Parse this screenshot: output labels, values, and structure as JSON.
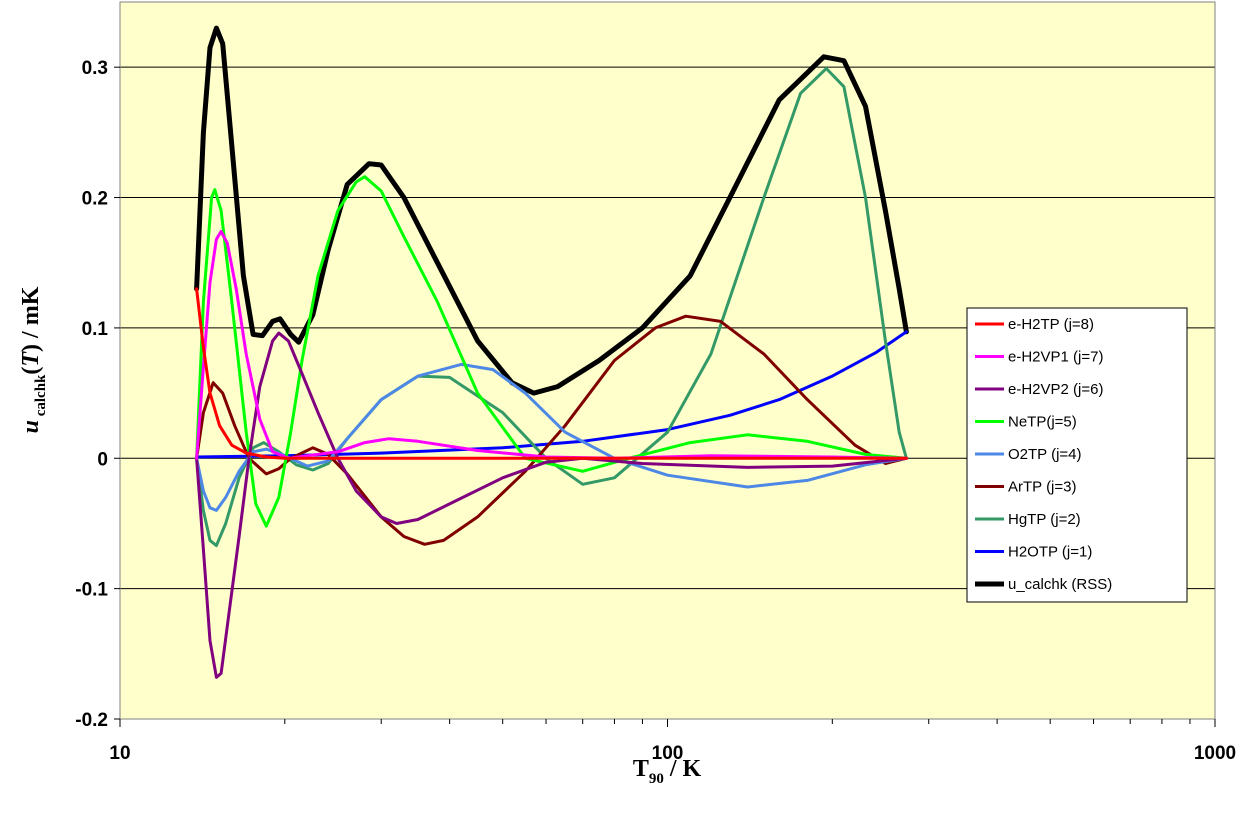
{
  "chart_data": {
    "type": "line",
    "title": "",
    "xlabel": {
      "main": "T",
      "sub": "90",
      "rest": " / K"
    },
    "ylabel": {
      "italic": "u",
      "sub": " calchk",
      "rest_open": "(",
      "rest_T": "T",
      "rest_close": ") / mK"
    },
    "x_scale": "log",
    "xlim": [
      10,
      1000
    ],
    "ylim": [
      -0.2,
      0.35
    ],
    "x_ticks": [
      {
        "value": 10,
        "label": "10"
      },
      {
        "value": 100,
        "label": "100"
      },
      {
        "value": 1000,
        "label": "1000"
      }
    ],
    "y_ticks": [
      {
        "value": -0.2,
        "label": "-0.2"
      },
      {
        "value": -0.1,
        "label": "-0.1"
      },
      {
        "value": 0,
        "label": "0"
      },
      {
        "value": 0.1,
        "label": "0.1"
      },
      {
        "value": 0.2,
        "label": "0.2"
      },
      {
        "value": 0.3,
        "label": "0.3"
      }
    ],
    "grid": "horizontal",
    "legend_position": "right",
    "plot_background": "#FFFFCC",
    "series": [
      {
        "name": "e-H2TP (j=8)",
        "color": "#FF0000",
        "width": 3,
        "points": [
          [
            13.8,
            0.13
          ],
          [
            14.2,
            0.085
          ],
          [
            14.6,
            0.05
          ],
          [
            15.2,
            0.025
          ],
          [
            16,
            0.01
          ],
          [
            17,
            0.004
          ],
          [
            18.5,
            0.001
          ],
          [
            20,
            0
          ],
          [
            25,
            0
          ],
          [
            35,
            0
          ],
          [
            60,
            0
          ],
          [
            100,
            0
          ],
          [
            200,
            0
          ],
          [
            273.16,
            0
          ]
        ]
      },
      {
        "name": "e-H2VP1 (j=7)",
        "color": "#FF00FF",
        "width": 3,
        "points": [
          [
            13.8,
            0
          ],
          [
            14.2,
            0.07
          ],
          [
            14.6,
            0.135
          ],
          [
            15.0,
            0.168
          ],
          [
            15.3,
            0.174
          ],
          [
            15.7,
            0.165
          ],
          [
            16.3,
            0.13
          ],
          [
            17,
            0.08
          ],
          [
            18,
            0.03
          ],
          [
            19,
            0.005
          ],
          [
            20.3,
            0
          ],
          [
            22,
            0.002
          ],
          [
            25,
            0.005
          ],
          [
            28,
            0.012
          ],
          [
            31,
            0.015
          ],
          [
            35,
            0.013
          ],
          [
            45,
            0.006
          ],
          [
            60,
            0.001
          ],
          [
            80,
            0
          ],
          [
            120,
            0.002
          ],
          [
            200,
            0.001
          ],
          [
            273.16,
            0
          ]
        ]
      },
      {
        "name": "e-H2VP2 (j=6)",
        "color": "#800080",
        "width": 3,
        "points": [
          [
            13.8,
            0
          ],
          [
            14.2,
            -0.07
          ],
          [
            14.6,
            -0.14
          ],
          [
            15.0,
            -0.168
          ],
          [
            15.3,
            -0.165
          ],
          [
            15.8,
            -0.12
          ],
          [
            16.5,
            -0.06
          ],
          [
            17.2,
            0
          ],
          [
            18,
            0.055
          ],
          [
            19,
            0.09
          ],
          [
            19.5,
            0.096
          ],
          [
            20.3,
            0.09
          ],
          [
            21.5,
            0.065
          ],
          [
            23,
            0.035
          ],
          [
            25,
            0
          ],
          [
            27,
            -0.025
          ],
          [
            30,
            -0.045
          ],
          [
            32,
            -0.05
          ],
          [
            35,
            -0.047
          ],
          [
            40,
            -0.035
          ],
          [
            50,
            -0.015
          ],
          [
            60,
            -0.003
          ],
          [
            70,
            0
          ],
          [
            90,
            -0.004
          ],
          [
            140,
            -0.007
          ],
          [
            200,
            -0.006
          ],
          [
            273.16,
            0
          ]
        ]
      },
      {
        "name": "NeTP(j=5)",
        "color": "#00FF00",
        "width": 3,
        "points": [
          [
            13.8,
            0
          ],
          [
            14.2,
            0.12
          ],
          [
            14.7,
            0.2
          ],
          [
            14.9,
            0.206
          ],
          [
            15.3,
            0.19
          ],
          [
            16,
            0.12
          ],
          [
            17,
            0.02
          ],
          [
            17.7,
            -0.035
          ],
          [
            18.5,
            -0.052
          ],
          [
            19.5,
            -0.03
          ],
          [
            20.5,
            0.02
          ],
          [
            21.5,
            0.075
          ],
          [
            23,
            0.14
          ],
          [
            25,
            0.19
          ],
          [
            27,
            0.212
          ],
          [
            28,
            0.216
          ],
          [
            30,
            0.205
          ],
          [
            33,
            0.17
          ],
          [
            38,
            0.12
          ],
          [
            45,
            0.05
          ],
          [
            55,
            0
          ],
          [
            70,
            -0.01
          ],
          [
            85,
            0
          ],
          [
            110,
            0.012
          ],
          [
            140,
            0.018
          ],
          [
            180,
            0.013
          ],
          [
            230,
            0.003
          ],
          [
            273.16,
            0
          ]
        ]
      },
      {
        "name": "O2TP (j=4)",
        "color": "#4D88E6",
        "width": 3,
        "points": [
          [
            13.8,
            0
          ],
          [
            14.2,
            -0.025
          ],
          [
            14.6,
            -0.038
          ],
          [
            15.0,
            -0.04
          ],
          [
            15.6,
            -0.03
          ],
          [
            16.5,
            -0.01
          ],
          [
            17.5,
            0.005
          ],
          [
            18.5,
            0.007
          ],
          [
            20,
            0.002
          ],
          [
            22,
            -0.006
          ],
          [
            24,
            -0.002
          ],
          [
            26,
            0.015
          ],
          [
            30,
            0.045
          ],
          [
            35,
            0.063
          ],
          [
            42,
            0.072
          ],
          [
            48,
            0.068
          ],
          [
            55,
            0.05
          ],
          [
            65,
            0.02
          ],
          [
            80,
            0
          ],
          [
            100,
            -0.013
          ],
          [
            140,
            -0.022
          ],
          [
            180,
            -0.017
          ],
          [
            230,
            -0.005
          ],
          [
            273.16,
            0
          ]
        ]
      },
      {
        "name": "ArTP (j=3)",
        "color": "#800000",
        "width": 3,
        "points": [
          [
            13.8,
            0
          ],
          [
            14.2,
            0.035
          ],
          [
            14.8,
            0.058
          ],
          [
            15.4,
            0.05
          ],
          [
            16.2,
            0.025
          ],
          [
            17.2,
            0
          ],
          [
            18.5,
            -0.012
          ],
          [
            19.5,
            -0.008
          ],
          [
            20.5,
            0
          ],
          [
            22.5,
            0.008
          ],
          [
            24,
            0.003
          ],
          [
            26,
            -0.012
          ],
          [
            30,
            -0.045
          ],
          [
            33,
            -0.06
          ],
          [
            36,
            -0.066
          ],
          [
            39,
            -0.063
          ],
          [
            45,
            -0.045
          ],
          [
            55,
            -0.01
          ],
          [
            65,
            0.025
          ],
          [
            80,
            0.075
          ],
          [
            95,
            0.1
          ],
          [
            108,
            0.109
          ],
          [
            125,
            0.105
          ],
          [
            150,
            0.08
          ],
          [
            180,
            0.045
          ],
          [
            220,
            0.01
          ],
          [
            250,
            -0.004
          ],
          [
            273.16,
            0
          ]
        ]
      },
      {
        "name": "HgTP (j=2)",
        "color": "#339966",
        "width": 3,
        "points": [
          [
            13.8,
            0
          ],
          [
            14.2,
            -0.04
          ],
          [
            14.6,
            -0.063
          ],
          [
            15.0,
            -0.067
          ],
          [
            15.6,
            -0.05
          ],
          [
            16.5,
            -0.015
          ],
          [
            17.5,
            0.008
          ],
          [
            18.3,
            0.012
          ],
          [
            19.5,
            0.005
          ],
          [
            21,
            -0.005
          ],
          [
            22.5,
            -0.009
          ],
          [
            24,
            -0.004
          ],
          [
            26,
            0.015
          ],
          [
            30,
            0.045
          ],
          [
            35,
            0.063
          ],
          [
            40,
            0.062
          ],
          [
            50,
            0.035
          ],
          [
            60,
            0
          ],
          [
            70,
            -0.02
          ],
          [
            80,
            -0.015
          ],
          [
            100,
            0.02
          ],
          [
            120,
            0.08
          ],
          [
            150,
            0.2
          ],
          [
            175,
            0.28
          ],
          [
            195,
            0.299
          ],
          [
            210,
            0.285
          ],
          [
            230,
            0.2
          ],
          [
            250,
            0.09
          ],
          [
            265,
            0.02
          ],
          [
            273.16,
            0
          ]
        ]
      },
      {
        "name": "H2OTP (j=1)",
        "color": "#0000FF",
        "width": 3,
        "points": [
          [
            13.8,
            0.001
          ],
          [
            20,
            0.002
          ],
          [
            30,
            0.004
          ],
          [
            50,
            0.008
          ],
          [
            70,
            0.013
          ],
          [
            100,
            0.022
          ],
          [
            130,
            0.033
          ],
          [
            160,
            0.045
          ],
          [
            200,
            0.063
          ],
          [
            240,
            0.081
          ],
          [
            273.16,
            0.097
          ]
        ]
      },
      {
        "name": "u_calchk (RSS)",
        "color": "#000000",
        "width": 5,
        "points": [
          [
            13.8,
            0.13
          ],
          [
            14.2,
            0.25
          ],
          [
            14.6,
            0.315
          ],
          [
            15.0,
            0.33
          ],
          [
            15.4,
            0.318
          ],
          [
            16,
            0.24
          ],
          [
            16.8,
            0.14
          ],
          [
            17.5,
            0.095
          ],
          [
            18.2,
            0.094
          ],
          [
            19,
            0.105
          ],
          [
            19.6,
            0.107
          ],
          [
            20.5,
            0.095
          ],
          [
            21.2,
            0.089
          ],
          [
            22.5,
            0.11
          ],
          [
            24,
            0.16
          ],
          [
            26,
            0.21
          ],
          [
            28.5,
            0.226
          ],
          [
            30,
            0.225
          ],
          [
            33,
            0.2
          ],
          [
            38,
            0.15
          ],
          [
            45,
            0.09
          ],
          [
            52,
            0.058
          ],
          [
            57,
            0.05
          ],
          [
            63,
            0.055
          ],
          [
            75,
            0.075
          ],
          [
            90,
            0.1
          ],
          [
            110,
            0.14
          ],
          [
            130,
            0.2
          ],
          [
            160,
            0.275
          ],
          [
            193,
            0.308
          ],
          [
            210,
            0.305
          ],
          [
            230,
            0.27
          ],
          [
            250,
            0.19
          ],
          [
            265,
            0.13
          ],
          [
            273.16,
            0.097
          ]
        ]
      }
    ]
  }
}
